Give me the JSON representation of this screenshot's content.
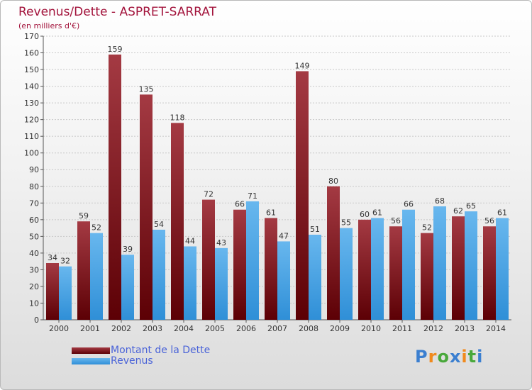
{
  "header": {
    "title": "Revenus/Dette - ASPRET-SARRAT",
    "subtitle": "(en milliers d'€)"
  },
  "legend": {
    "dette_label": "Montant de la Dette",
    "revenus_label": "Revenus"
  },
  "logo": {
    "text": "Proxiti",
    "colors": [
      "#3b7fd0",
      "#f08a1d",
      "#49a83b"
    ]
  },
  "colors": {
    "dette_top": "#a43a43",
    "dette_bottom": "#5c0005",
    "revenus_top": "#68b7ee",
    "revenus_bottom": "#2f8fd7",
    "title": "#a3143c",
    "legend_text": "#4a63d8"
  },
  "chart_data": {
    "type": "bar",
    "title": "Revenus/Dette - ASPRET-SARRAT",
    "subtitle": "(en milliers d'€)",
    "xlabel": "",
    "ylabel": "",
    "categories": [
      "2000",
      "2001",
      "2002",
      "2003",
      "2004",
      "2005",
      "2006",
      "2007",
      "2008",
      "2009",
      "2010",
      "2011",
      "2012",
      "2013",
      "2014"
    ],
    "series": [
      {
        "name": "Montant de la Dette",
        "values": [
          34,
          59,
          159,
          135,
          118,
          72,
          66,
          61,
          149,
          80,
          60,
          56,
          52,
          62,
          56
        ]
      },
      {
        "name": "Revenus",
        "values": [
          32,
          52,
          39,
          54,
          44,
          43,
          71,
          47,
          51,
          55,
          61,
          66,
          68,
          65,
          61
        ]
      }
    ],
    "ylim": [
      0,
      170
    ],
    "yticks": [
      0,
      10,
      20,
      30,
      40,
      50,
      60,
      70,
      80,
      90,
      100,
      110,
      120,
      130,
      140,
      150,
      160,
      170
    ],
    "grid": true,
    "legend_position": "bottom-left"
  }
}
